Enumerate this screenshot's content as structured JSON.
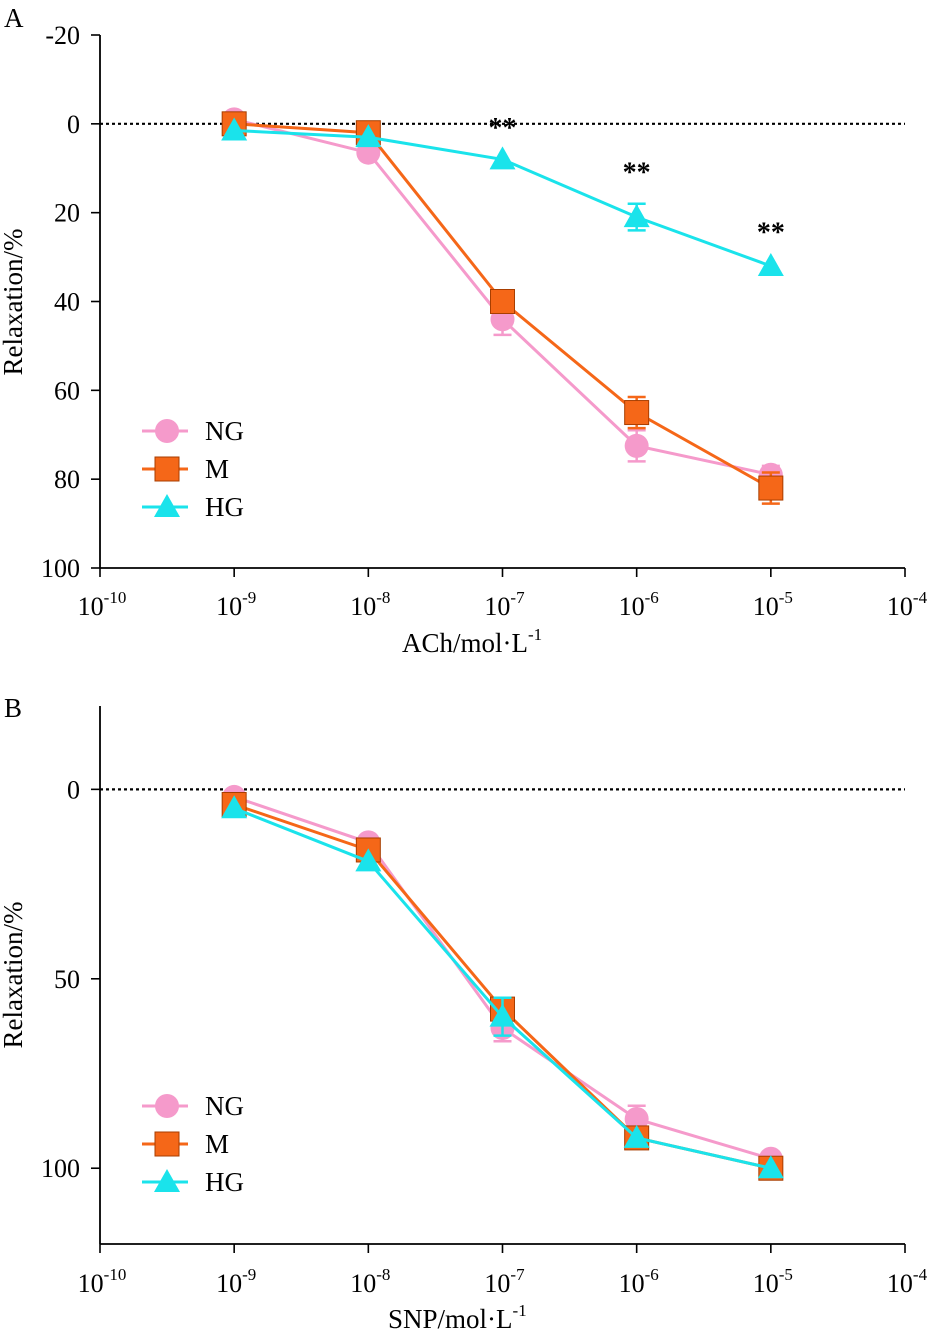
{
  "colors": {
    "NG": "#f59acb",
    "M": "#f56718",
    "HG": "#1ae3eb",
    "axis": "#000000"
  },
  "chart_data": [
    {
      "type": "line",
      "panel_label": "A",
      "xlabel_main": "ACh/mol·L",
      "xlabel_sup": "-1",
      "ylabel": "Relaxation/%",
      "x_scale": "log10",
      "xlim_exp": [
        -10,
        -4
      ],
      "x_ticks": [
        {
          "base": "10",
          "exp": "-10"
        },
        {
          "base": "10",
          "exp": "-9"
        },
        {
          "base": "10",
          "exp": "-8"
        },
        {
          "base": "10",
          "exp": "-7"
        },
        {
          "base": "10",
          "exp": "-6"
        },
        {
          "base": "10",
          "exp": "-5"
        },
        {
          "base": "10",
          "exp": "-4"
        }
      ],
      "ylim": [
        -20,
        100
      ],
      "y_inverted": true,
      "y_ticks": [
        "-20",
        "0",
        "20",
        "40",
        "60",
        "80",
        "100"
      ],
      "reference_line_y": 0,
      "x_exp": [
        -9,
        -8,
        -7,
        -6,
        -5
      ],
      "series": [
        {
          "name": "NG",
          "marker": "circle",
          "values": [
            -1,
            6.5,
            44,
            72.5,
            79
          ],
          "errors": [
            0,
            0,
            3.5,
            3.5,
            2
          ]
        },
        {
          "name": "M",
          "marker": "square",
          "values": [
            0,
            2,
            40,
            65,
            82
          ],
          "errors": [
            0,
            0,
            0,
            3.5,
            3.5
          ]
        },
        {
          "name": "HG",
          "marker": "triangle",
          "values": [
            1.5,
            3,
            8,
            21,
            32
          ],
          "errors": [
            0,
            0,
            0,
            3,
            0
          ]
        }
      ],
      "annotations": [
        {
          "text": "**",
          "x_exp": -7,
          "y": 3
        },
        {
          "text": "**",
          "x_exp": -6,
          "y": 13
        },
        {
          "text": "**",
          "x_exp": -5,
          "y": 26.5
        }
      ],
      "legend": [
        "NG",
        "M",
        "HG"
      ],
      "legend_position": "bottom-left"
    },
    {
      "type": "line",
      "panel_label": "B",
      "xlabel_main": "SNP/mol·L",
      "xlabel_sup": "-1",
      "ylabel": "Relaxation/%",
      "x_scale": "log10",
      "xlim_exp": [
        -10,
        -4
      ],
      "x_ticks": [
        {
          "base": "10",
          "exp": "-10"
        },
        {
          "base": "10",
          "exp": "-9"
        },
        {
          "base": "10",
          "exp": "-8"
        },
        {
          "base": "10",
          "exp": "-7"
        },
        {
          "base": "10",
          "exp": "-6"
        },
        {
          "base": "10",
          "exp": "-5"
        },
        {
          "base": "10",
          "exp": "-4"
        }
      ],
      "ylim": [
        -22,
        120
      ],
      "y_inverted": true,
      "y_ticks": [
        "0",
        "50",
        "100"
      ],
      "reference_line_y": 0,
      "x_exp": [
        -9,
        -8,
        -7,
        -6,
        -5
      ],
      "series": [
        {
          "name": "NG",
          "marker": "circle",
          "values": [
            2,
            14,
            63,
            87,
            97.5
          ],
          "errors": [
            0,
            0,
            3.5,
            3.5,
            0
          ]
        },
        {
          "name": "M",
          "marker": "square",
          "values": [
            4,
            16,
            58,
            92,
            100
          ],
          "errors": [
            0,
            0,
            3,
            0,
            0
          ]
        },
        {
          "name": "HG",
          "marker": "triangle",
          "values": [
            5,
            19,
            60,
            92,
            100
          ],
          "errors": [
            0,
            0,
            5,
            0,
            0
          ]
        }
      ],
      "annotations": [],
      "legend": [
        "NG",
        "M",
        "HG"
      ],
      "legend_position": "bottom-left"
    }
  ]
}
